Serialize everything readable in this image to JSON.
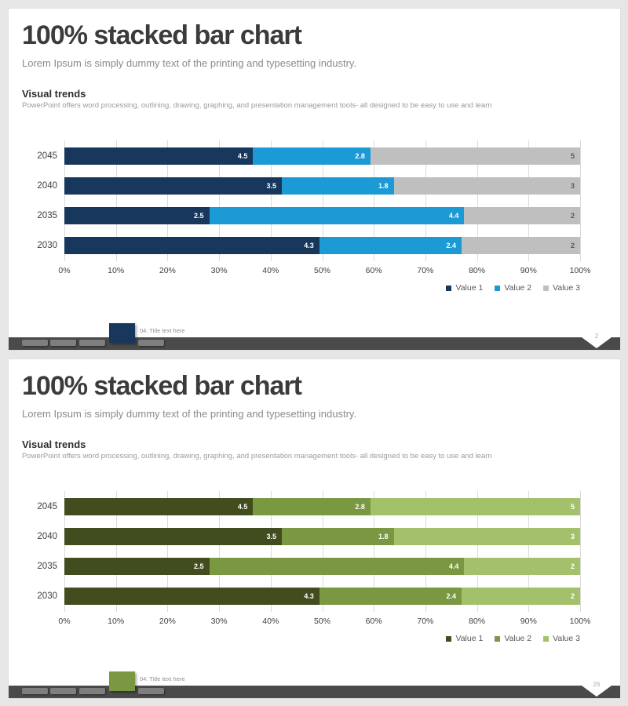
{
  "chart_data": [
    {
      "type": "bar",
      "variant": "100% stacked horizontal",
      "title": "Visual trends",
      "categories": [
        "2045",
        "2040",
        "2035",
        "2030"
      ],
      "series": [
        {
          "name": "Value 1",
          "values": [
            4.5,
            3.5,
            2.5,
            4.3
          ],
          "color": "#17375D",
          "label_color": "#FFFFFF"
        },
        {
          "name": "Value 2",
          "values": [
            2.8,
            1.8,
            4.4,
            2.4
          ],
          "color": "#1B9AD6",
          "label_color": "#FFFFFF"
        },
        {
          "name": "Value 3",
          "values": [
            5,
            3,
            2,
            2
          ],
          "color": "#BFBFBF",
          "label_color": "#595959"
        }
      ],
      "x_ticks": [
        "0%",
        "10%",
        "20%",
        "30%",
        "40%",
        "50%",
        "60%",
        "70%",
        "80%",
        "90%",
        "100%"
      ],
      "xlim": [
        0,
        100
      ],
      "grid": true,
      "legend": [
        "Value 1",
        "Value 2",
        "Value 3"
      ],
      "legend_position": "bottom-right"
    },
    {
      "type": "bar",
      "variant": "100% stacked horizontal",
      "title": "Visual trends",
      "categories": [
        "2045",
        "2040",
        "2035",
        "2030"
      ],
      "series": [
        {
          "name": "Value 1",
          "values": [
            4.5,
            3.5,
            2.5,
            4.3
          ],
          "color": "#414D1E",
          "label_color": "#FFFFFF"
        },
        {
          "name": "Value 2",
          "values": [
            2.8,
            1.8,
            4.4,
            2.4
          ],
          "color": "#7A9742",
          "label_color": "#FFFFFF"
        },
        {
          "name": "Value 3",
          "values": [
            5,
            3,
            2,
            2
          ],
          "color": "#A3C06A",
          "label_color": "#FFFFFF"
        }
      ],
      "x_ticks": [
        "0%",
        "10%",
        "20%",
        "30%",
        "40%",
        "50%",
        "60%",
        "70%",
        "80%",
        "90%",
        "100%"
      ],
      "xlim": [
        0,
        100
      ],
      "grid": true,
      "legend": [
        "Value 1",
        "Value 2",
        "Value 3"
      ],
      "legend_position": "bottom-right"
    }
  ],
  "slides": [
    {
      "title": "100% stacked bar chart",
      "subtitle": "Lorem Ipsum is simply dummy text of the printing and typesetting industry.",
      "section_heading": "Visual trends",
      "section_description": "PowerPoint offers word processing, outlining, drawing, graphing, and presentation management tools- all designed to be easy to use and learn",
      "footer": {
        "active_label": "04. Title text here",
        "page_number": "2",
        "accent": "#17375D"
      }
    },
    {
      "title": "100% stacked bar chart",
      "subtitle": "Lorem Ipsum is simply dummy text of the printing and typesetting industry.",
      "section_heading": "Visual trends",
      "section_description": "PowerPoint offers word processing, outlining, drawing, graphing, and presentation management tools- all designed to be easy to use and learn",
      "footer": {
        "active_label": "04. Title text here",
        "page_number": "26",
        "accent": "#7A9742"
      }
    }
  ]
}
